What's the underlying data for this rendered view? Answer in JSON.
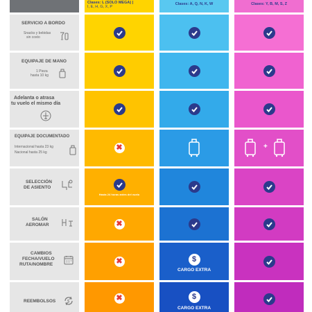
{
  "header": {
    "col1_line1": "Clases: L (SOLO MEGA) |",
    "col1_line2": "I, E, H, G, X, P",
    "col2": "Clases: A, Q, N, K, W",
    "col3": "Clases: Y, B, M, S, Z"
  },
  "rows": {
    "servicio": {
      "title": "SERVICIO A BORDO",
      "sub_l1": "Snacks y bebidas",
      "sub_l2": "sin costo",
      "icon": "drinks-icon"
    },
    "equipaje_mano": {
      "title": "EQUIPAJE DE MANO",
      "sub_l1": "1 Pieza",
      "sub_l2": "hasta 10 kg",
      "icon": "carry-on-bag-icon"
    },
    "adelanta": {
      "title_l1": "Adelanta o atrasa",
      "title_l2": "tu vuelo el mismo día",
      "icon": "plane-icon"
    },
    "documentado": {
      "title": "EQUIPAJE DOCUMENTADO",
      "sub_l1": "Internacional hasta 23 kg",
      "sub_l2": "Nacional hasta 25 kg",
      "icon": "checked-bag-icon"
    },
    "asiento": {
      "title_l1": "SELECCIÓN",
      "title_l2": "DE ASIENTO",
      "icon": "seat-icon",
      "note": "Hasta 24 horas antes del vuelo"
    },
    "salon": {
      "title_l1": "SALÓN",
      "title_l2": "AEROMAR",
      "icon": "lounge-icon"
    },
    "cambios": {
      "title_l1": "CAMBIOS",
      "title_l2": "FECHA/VUELO",
      "title_l3": "RUTA/NOMBRE",
      "icon": "calendar-icon",
      "cargo": "CARGO EXTRA"
    },
    "reembolsos": {
      "title": "REEMBOLSOS",
      "icon": "refund-icon",
      "cargo": "CARGO EXTRA"
    }
  },
  "symbols": {
    "x": "✖",
    "dollar": "$",
    "plus": "+"
  },
  "colors": {
    "yellow": "#ffd400",
    "orange": "#ffa800",
    "blue_light": "#4ab8ef",
    "blue_dark": "#2852c8",
    "pink_light": "#f56fd3",
    "pink_dark": "#c12fbe",
    "navy": "#2b3a8c"
  }
}
